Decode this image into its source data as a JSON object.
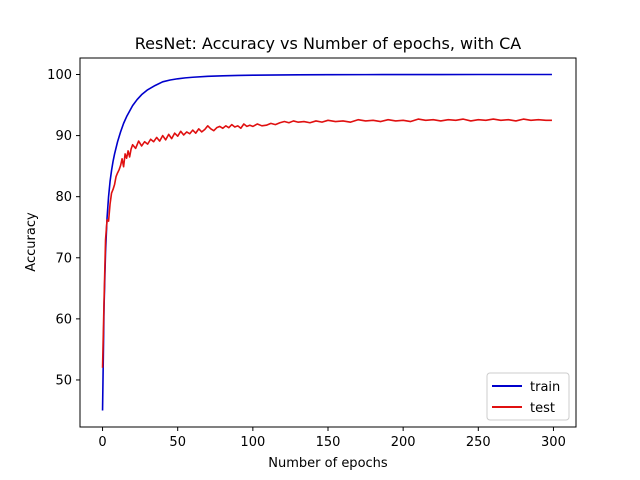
{
  "chart_data": {
    "type": "line",
    "title": "ResNet: Accuracy vs Number of epochs, with CA",
    "xlabel": "Number of epochs",
    "ylabel": "Accuracy",
    "xlim": [
      -15,
      315
    ],
    "ylim": [
      42.3,
      102.7
    ],
    "xticks": [
      0,
      50,
      100,
      150,
      200,
      250,
      300
    ],
    "yticks": [
      50,
      60,
      70,
      80,
      90,
      100
    ],
    "grid": false,
    "legend_position": "lower-right",
    "series": [
      {
        "name": "train",
        "color": "#0000cc",
        "x": [
          0,
          1,
          2,
          3,
          4,
          5,
          6,
          7,
          8,
          10,
          12,
          14,
          16,
          18,
          20,
          23,
          26,
          30,
          35,
          40,
          45,
          50,
          55,
          60,
          70,
          80,
          90,
          100,
          110,
          120,
          130,
          150,
          175,
          200,
          225,
          250,
          275,
          299
        ],
        "y": [
          45.0,
          62.0,
          71.0,
          76.5,
          80.0,
          82.5,
          84.3,
          85.8,
          87.0,
          89.0,
          90.6,
          92.0,
          93.1,
          94.0,
          94.9,
          95.9,
          96.7,
          97.5,
          98.2,
          98.8,
          99.1,
          99.3,
          99.45,
          99.55,
          99.7,
          99.78,
          99.84,
          99.88,
          99.91,
          99.93,
          99.95,
          99.97,
          99.98,
          99.99,
          99.99,
          100.0,
          100.0,
          100.0
        ]
      },
      {
        "name": "test",
        "color": "#e01010",
        "x": [
          0,
          1,
          2,
          3,
          4,
          5,
          6,
          7,
          8,
          9,
          10,
          11,
          12,
          13,
          14,
          15,
          16,
          17,
          18,
          19,
          20,
          22,
          24,
          26,
          28,
          30,
          32,
          34,
          36,
          38,
          40,
          42,
          44,
          46,
          48,
          50,
          52,
          54,
          56,
          58,
          60,
          62,
          64,
          66,
          68,
          70,
          72,
          74,
          76,
          78,
          80,
          82,
          84,
          86,
          88,
          90,
          92,
          94,
          96,
          98,
          100,
          103,
          106,
          109,
          112,
          115,
          118,
          121,
          124,
          127,
          130,
          134,
          138,
          142,
          146,
          150,
          155,
          160,
          165,
          170,
          175,
          180,
          185,
          190,
          195,
          200,
          205,
          210,
          215,
          220,
          225,
          230,
          235,
          240,
          245,
          250,
          255,
          260,
          265,
          270,
          275,
          280,
          285,
          290,
          295,
          299
        ],
        "y": [
          52.0,
          63.0,
          73.0,
          76.2,
          76.0,
          78.8,
          80.6,
          81.2,
          82.0,
          83.3,
          83.9,
          84.4,
          85.1,
          86.2,
          84.9,
          87.0,
          86.3,
          87.5,
          86.5,
          87.8,
          88.5,
          87.9,
          89.1,
          88.3,
          89.0,
          88.6,
          89.4,
          89.0,
          89.7,
          89.1,
          90.0,
          89.3,
          90.2,
          89.5,
          90.4,
          89.9,
          90.7,
          90.1,
          90.6,
          90.3,
          90.9,
          90.4,
          91.1,
          90.6,
          91.0,
          91.6,
          91.1,
          90.8,
          91.3,
          91.5,
          91.2,
          91.6,
          91.3,
          91.8,
          91.4,
          91.6,
          91.2,
          91.9,
          91.5,
          91.7,
          91.5,
          91.9,
          91.6,
          91.7,
          92.0,
          91.8,
          92.1,
          92.3,
          92.1,
          92.4,
          92.2,
          92.3,
          92.1,
          92.4,
          92.2,
          92.5,
          92.3,
          92.4,
          92.2,
          92.6,
          92.4,
          92.5,
          92.3,
          92.6,
          92.4,
          92.5,
          92.3,
          92.7,
          92.5,
          92.6,
          92.4,
          92.6,
          92.5,
          92.7,
          92.4,
          92.6,
          92.5,
          92.7,
          92.5,
          92.6,
          92.4,
          92.7,
          92.5,
          92.6,
          92.5,
          92.5
        ]
      }
    ]
  }
}
